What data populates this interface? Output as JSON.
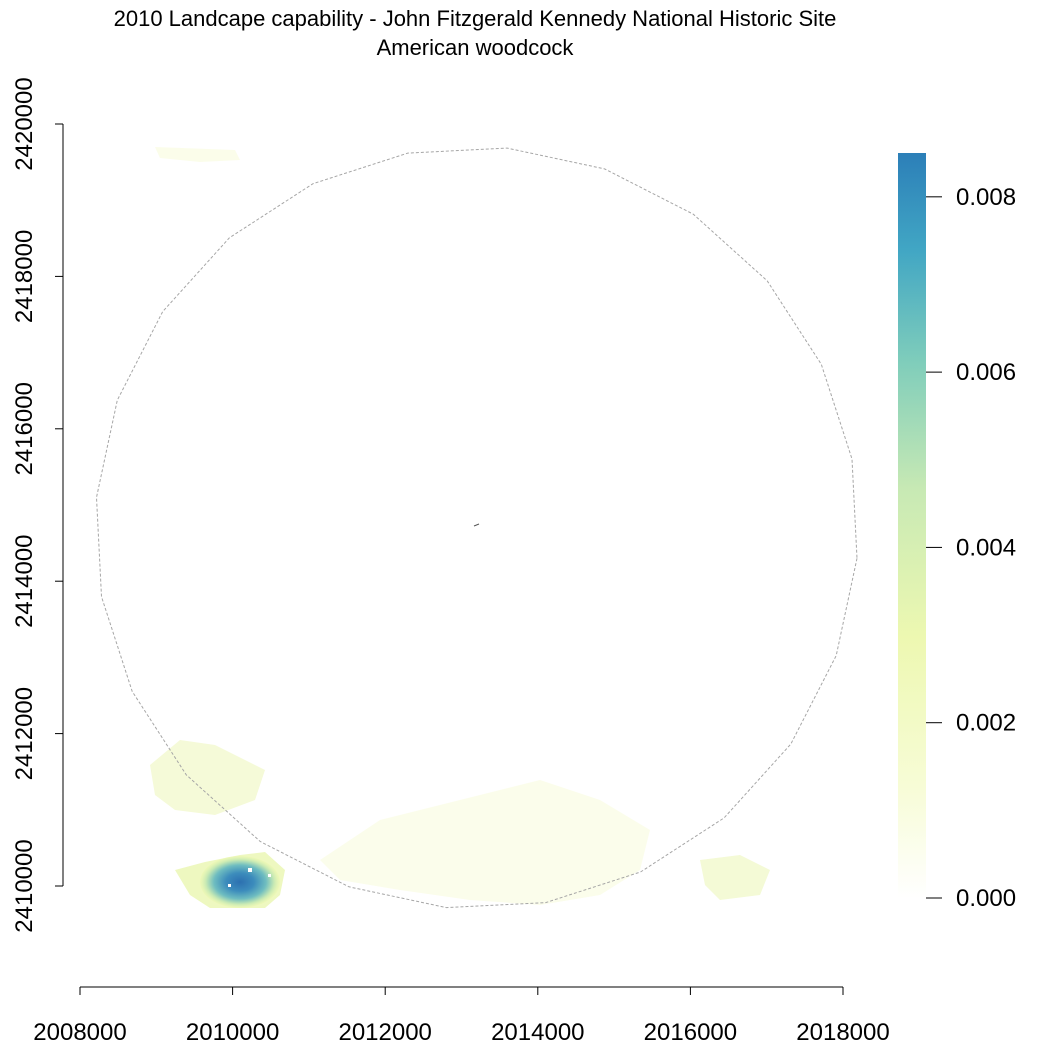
{
  "title": {
    "line1": "2010 Landcape capability - John Fitzgerald Kennedy National Historic Site",
    "line2": "American woodcock"
  },
  "map": {
    "x_axis": {
      "ticks": [
        2008000,
        2010000,
        2012000,
        2014000,
        2016000,
        2018000
      ],
      "labels": [
        "2008000",
        "2010000",
        "2012000",
        "2014000",
        "2016000",
        "2018000"
      ],
      "range": [
        2008000,
        2018000
      ]
    },
    "y_axis": {
      "ticks": [
        2410000,
        2412000,
        2414000,
        2416000,
        2418000,
        2420000
      ],
      "labels": [
        "2410000",
        "2412000",
        "2414000",
        "2416000",
        "2418000",
        "2420000"
      ],
      "range": [
        2410000,
        2420000
      ]
    },
    "boundary": {
      "shape": "circle",
      "center": [
        2013200,
        2414700
      ],
      "radius_approx": 5000,
      "line_style": "dashed",
      "color": "#a0a0a0"
    },
    "legend": {
      "values": [
        0.0,
        0.002,
        0.004,
        0.006,
        0.008
      ],
      "labels": [
        "0.000",
        "0.002",
        "0.004",
        "0.006",
        "0.008"
      ],
      "range": [
        0,
        0.0085
      ],
      "color_ramp": [
        "#ffffe5",
        "#edf8b1",
        "#c7e9b4",
        "#7fcdbb",
        "#41b6c4",
        "#2c7fb8"
      ]
    }
  }
}
